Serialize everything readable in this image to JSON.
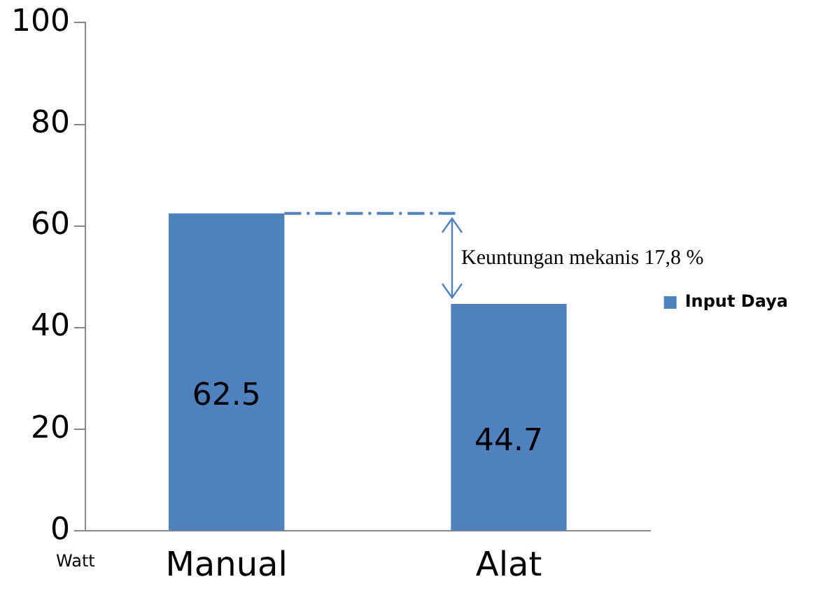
{
  "chart_data": {
    "type": "bar",
    "ylabel": "Watt",
    "categories": [
      "Manual",
      "Alat"
    ],
    "series": [
      {
        "name": "Input Daya",
        "color": "#4f81bd",
        "values": [
          62.5,
          44.7
        ]
      }
    ],
    "ylim": [
      0,
      100
    ],
    "yticks": [
      0,
      20,
      40,
      60,
      80,
      100
    ],
    "grid": false,
    "legend": "right",
    "data_labels": true,
    "ref_lines": [
      {
        "axis": "y",
        "value": 62.5,
        "color": "#4f81bd",
        "line_style": "dashed"
      }
    ],
    "annotations": [
      "Keuntungan mekanis 17,8 %"
    ]
  }
}
